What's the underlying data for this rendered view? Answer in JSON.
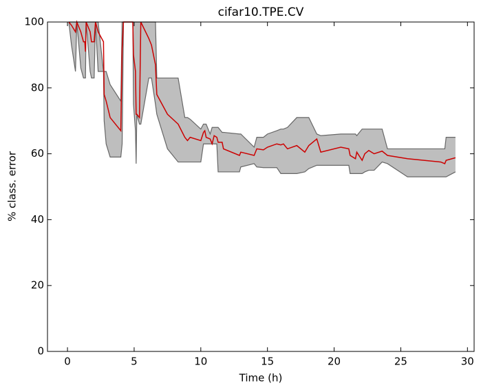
{
  "chart_data": {
    "type": "line",
    "title": "cifar10.TPE.CV",
    "x_label": "Time (h)",
    "y_label": "% class. error",
    "x": [
      0.1,
      0.3,
      0.6,
      0.7,
      1.0,
      1.2,
      1.3,
      1.35,
      1.4,
      1.7,
      1.8,
      2.0,
      2.1,
      2.3,
      2.7,
      2.75,
      2.9,
      3.2,
      4.0,
      4.1,
      4.2,
      4.9,
      4.95,
      5.1,
      5.15,
      5.2,
      5.4,
      5.5,
      6.1,
      6.3,
      6.6,
      6.7,
      7.5,
      8.3,
      8.8,
      9.0,
      9.2,
      10.0,
      10.2,
      10.3,
      10.4,
      10.7,
      10.85,
      11.0,
      11.2,
      11.3,
      11.6,
      11.7,
      12.9,
      13.0,
      14.0,
      14.2,
      14.7,
      15.0,
      15.7,
      16.0,
      16.2,
      16.5,
      17.2,
      17.8,
      18.1,
      18.7,
      19.0,
      20.5,
      21.1,
      21.2,
      21.6,
      21.7,
      22.1,
      22.3,
      22.6,
      23.0,
      23.6,
      24.0,
      25.5,
      28.0,
      28.3,
      28.4,
      29.1
    ],
    "series": [
      {
        "color": "#cc0000",
        "values": [
          100,
          99,
          97,
          100,
          97,
          94,
          94,
          91,
          100,
          97,
          94,
          94,
          100,
          97,
          94,
          78,
          76,
          71,
          67,
          92,
          100,
          100,
          90,
          85,
          72,
          72,
          71,
          100,
          95,
          93,
          87,
          78,
          72,
          69,
          65,
          64,
          65,
          64,
          66.5,
          67,
          65,
          64.5,
          63,
          65.5,
          65,
          63.5,
          63.5,
          61.5,
          59.5,
          60.5,
          59.5,
          61.5,
          61.2,
          62,
          63,
          62.7,
          63,
          61.5,
          62.5,
          60.5,
          62.5,
          64.5,
          60.5,
          62,
          61.5,
          59.5,
          58.5,
          60.5,
          58,
          60,
          61,
          60,
          60.8,
          59.5,
          58.5,
          57.5,
          57,
          58,
          58.8
        ]
      }
    ],
    "band": {
      "color": "#bebebe",
      "lower": [
        100,
        93,
        85,
        100,
        86,
        83,
        83,
        83,
        100,
        85,
        83,
        83,
        100,
        85,
        85,
        70,
        63,
        59,
        59,
        63,
        100,
        100,
        75,
        67,
        57,
        72,
        69,
        69,
        83,
        83,
        75,
        72,
        61.5,
        57.5,
        57.5,
        57.5,
        57.5,
        57.5,
        63,
        63,
        63,
        63,
        63,
        63,
        63,
        54.5,
        54.5,
        54.5,
        54.5,
        56,
        57,
        56,
        55.8,
        55.8,
        55.8,
        54,
        54,
        54,
        54,
        54.5,
        55.5,
        56.5,
        56.5,
        56.5,
        56.5,
        54,
        54,
        54,
        54,
        54.5,
        55,
        55,
        57.5,
        57,
        53,
        53,
        53,
        53,
        54.5
      ],
      "upper": [
        100,
        100,
        100,
        100,
        100,
        100,
        100,
        100,
        100,
        100,
        100,
        100,
        100,
        100,
        85,
        85,
        85,
        81,
        76,
        100,
        100,
        100,
        100,
        100,
        100,
        100,
        100,
        100,
        100,
        100,
        100,
        83,
        83,
        83,
        71,
        71,
        70.5,
        67.5,
        69,
        69,
        69,
        66,
        68,
        68,
        68,
        68,
        66.5,
        66.5,
        66,
        66,
        62,
        65,
        65,
        66,
        67,
        67.5,
        67.5,
        68,
        71,
        71,
        71,
        66,
        65.5,
        66,
        66,
        66,
        66,
        65.5,
        67.5,
        67.5,
        67.5,
        67.5,
        67.5,
        61.5,
        61.5,
        61.5,
        61.5,
        65,
        65
      ]
    },
    "xlim": [
      -1.5,
      30.5
    ],
    "ylim": [
      0,
      100
    ],
    "xticks": [
      0,
      5,
      10,
      15,
      20,
      25,
      30
    ],
    "yticks": [
      0,
      20,
      40,
      60,
      80,
      100
    ]
  }
}
